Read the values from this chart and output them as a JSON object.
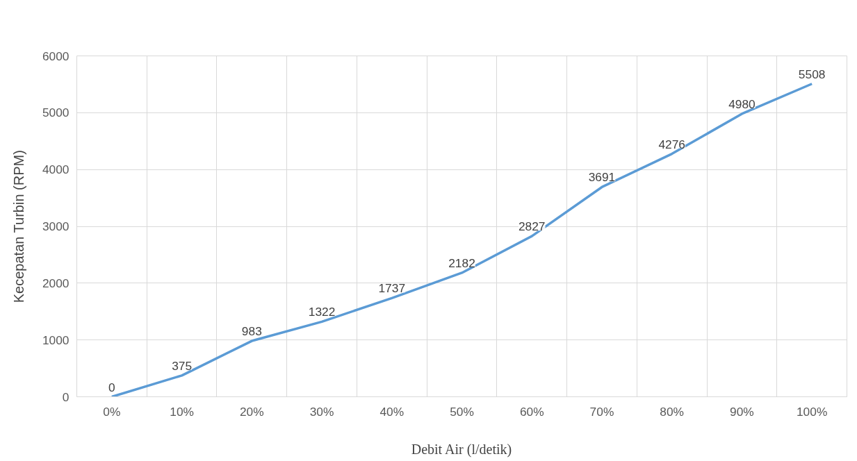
{
  "chart_data": {
    "type": "line",
    "xlabel": "Debit Air (l/detik)",
    "ylabel": "Kecepatan Turbin (RPM)",
    "categories": [
      "0%",
      "10%",
      "20%",
      "30%",
      "40%",
      "50%",
      "60%",
      "70%",
      "80%",
      "90%",
      "100%"
    ],
    "series": [
      {
        "color": "#5b9bd5",
        "values": [
          0,
          375,
          983,
          1322,
          1737,
          2182,
          2827,
          3691,
          4276,
          4980,
          5508
        ]
      }
    ],
    "ylim": [
      0,
      6000
    ],
    "yticks": [
      0,
      1000,
      2000,
      3000,
      4000,
      5000,
      6000
    ],
    "grid": true,
    "data_labels": true,
    "marker": "none",
    "line_style": "solid"
  }
}
